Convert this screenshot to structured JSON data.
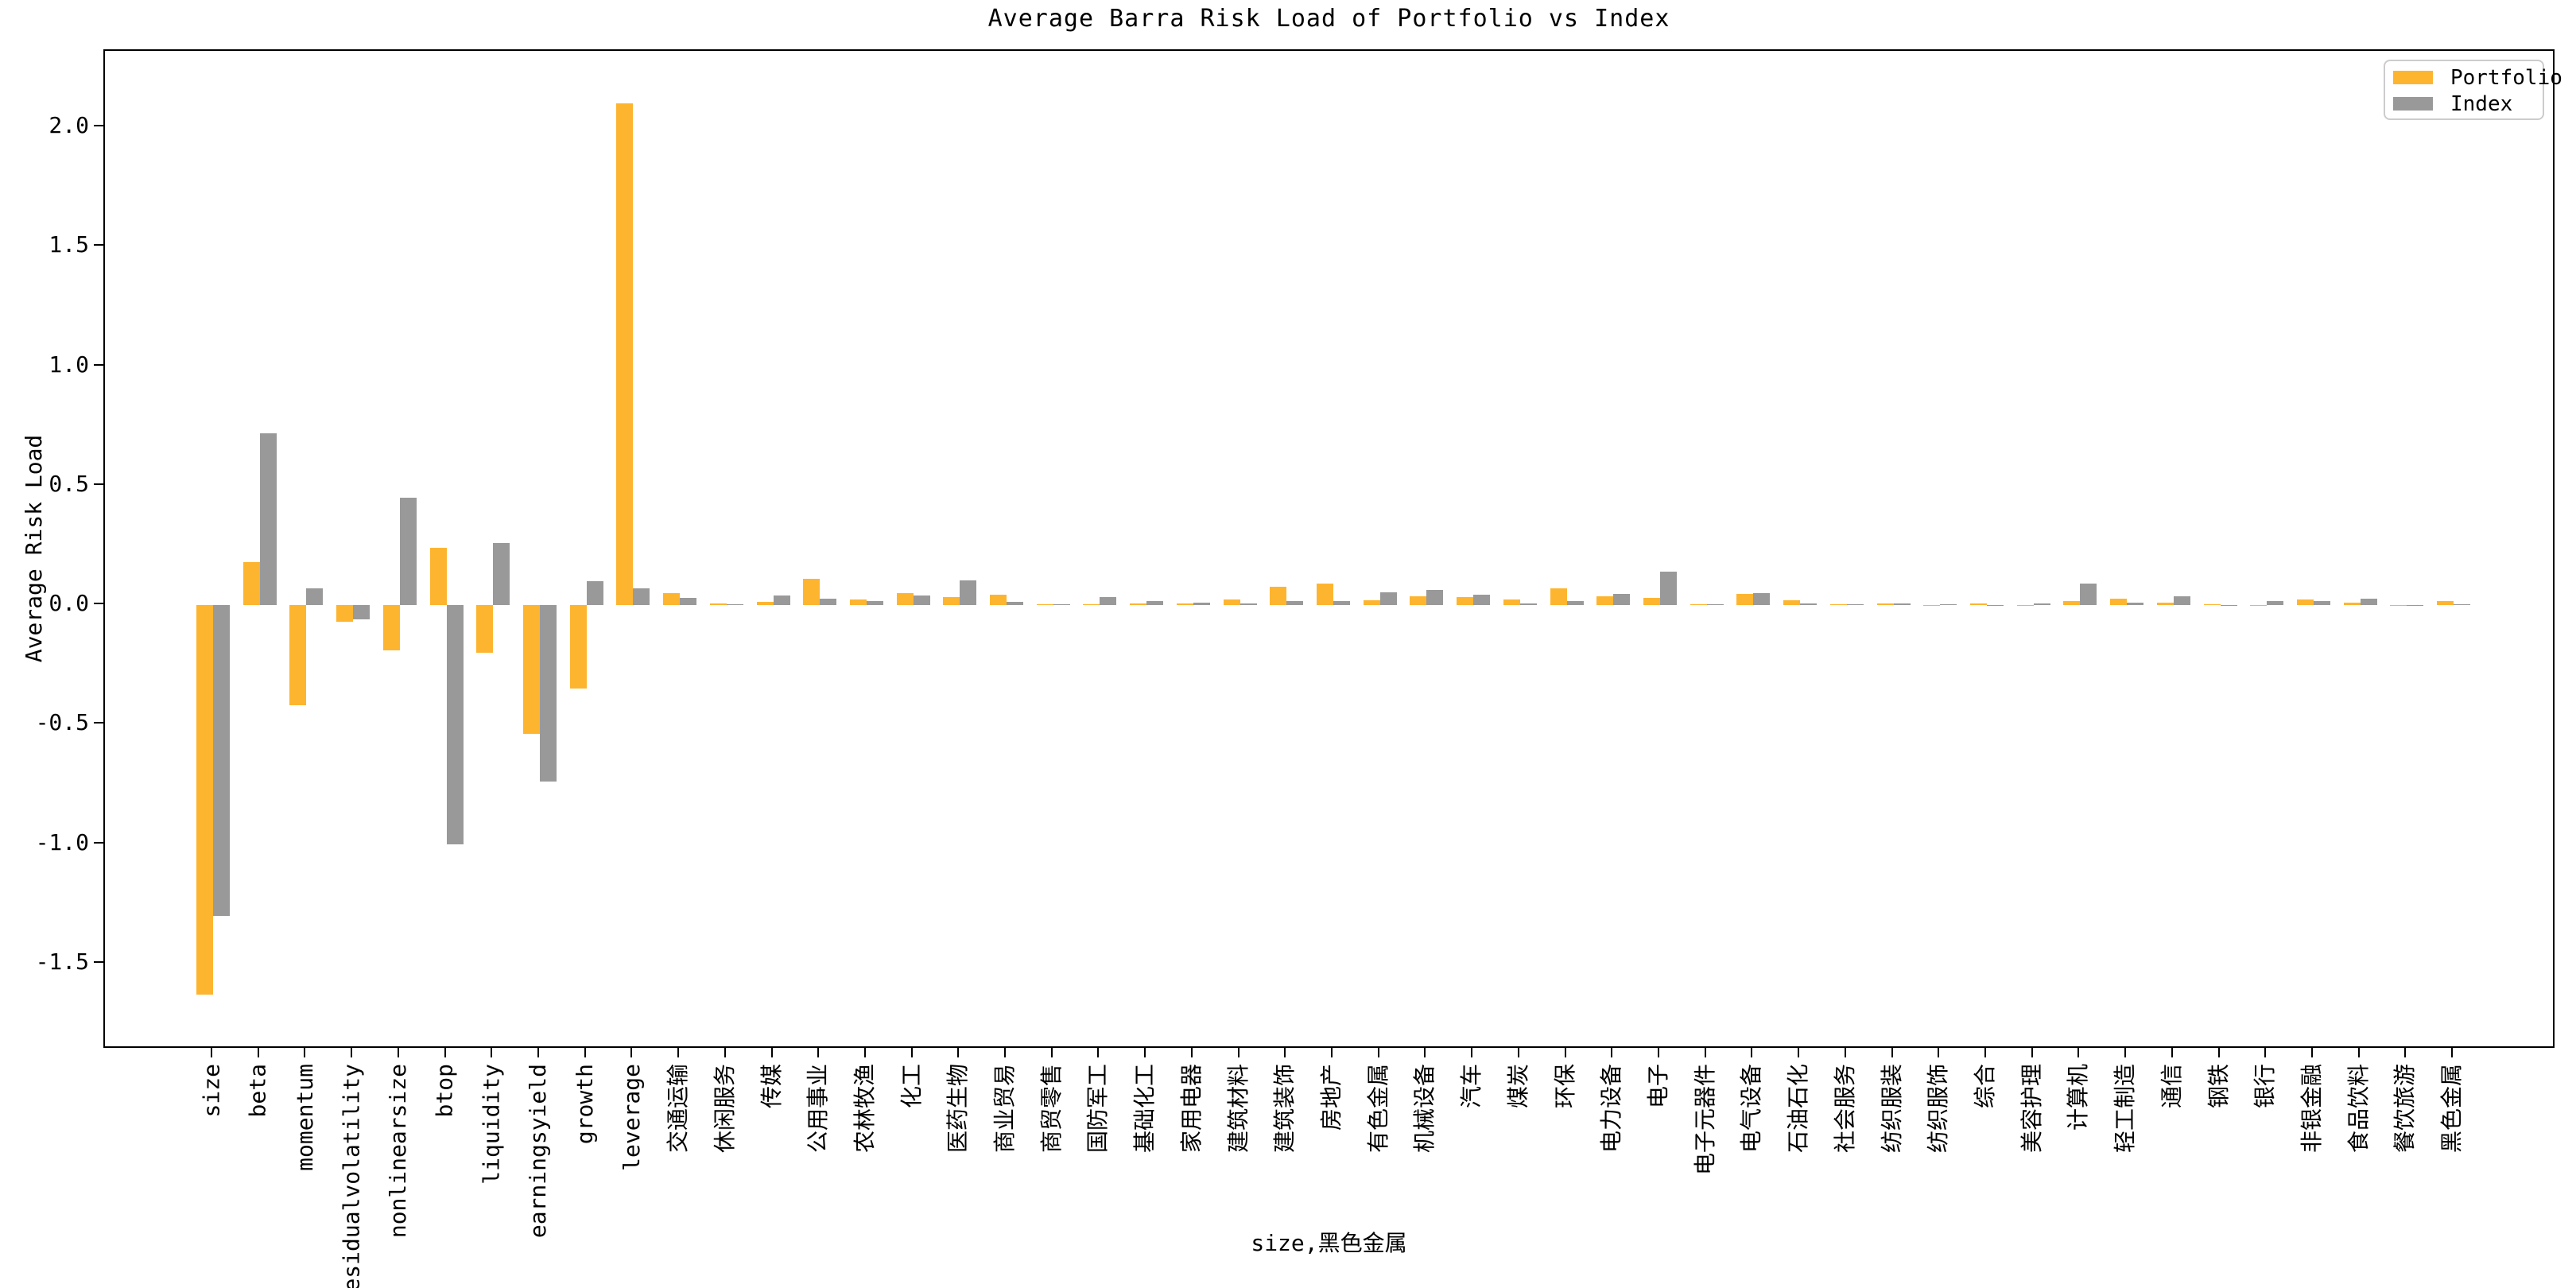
{
  "chart_data": {
    "type": "bar",
    "title": "Average Barra Risk Load of Portfolio vs Index",
    "xlabel": "size,黑色金属",
    "ylabel": "Average Risk Load",
    "grid": false,
    "legend_position": "upper right",
    "background": "#FFFFFF",
    "spine_color": "#000000",
    "ylim": [
      -1.86,
      2.32
    ],
    "yticks": [
      2.0,
      1.5,
      1.0,
      0.5,
      0.0,
      -0.5,
      -1.0,
      -1.5
    ],
    "ytick_labels": [
      "2.0",
      "1.5",
      "1.0",
      "0.5",
      "0.0",
      "-0.5",
      "-1.0",
      "-1.5"
    ],
    "categories": [
      "size",
      "beta",
      "momentum",
      "residualvolatility",
      "nonlinearsize",
      "btop",
      "liquidity",
      "earningsyield",
      "growth",
      "leverage",
      "交通运输",
      "休闲服务",
      "传媒",
      "公用事业",
      "农林牧渔",
      "化工",
      "医药生物",
      "商业贸易",
      "商贸零售",
      "国防军工",
      "基础化工",
      "家用电器",
      "建筑材料",
      "建筑装饰",
      "房地产",
      "有色金属",
      "机械设备",
      "汽车",
      "煤炭",
      "环保",
      "电力设备",
      "电子",
      "电子元器件",
      "电气设备",
      "石油石化",
      "社会服务",
      "纺织服装",
      "纺织服饰",
      "综合",
      "美容护理",
      "计算机",
      "轻工制造",
      "通信",
      "钢铁",
      "银行",
      "非银金融",
      "食品饮料",
      "餐饮旅游",
      "黑色金属"
    ],
    "series": [
      {
        "name": "Portfolio",
        "color": "#FDB530",
        "values": [
          -1.63,
          0.18,
          -0.42,
          -0.07,
          -0.19,
          0.24,
          -0.2,
          -0.54,
          -0.35,
          2.1,
          0.05,
          0.008,
          0.015,
          0.11,
          0.022,
          0.05,
          0.033,
          0.044,
          0.004,
          0.005,
          0.007,
          0.006,
          0.024,
          0.078,
          0.09,
          0.019,
          0.036,
          0.033,
          0.022,
          0.069,
          0.038,
          0.031,
          0.004,
          0.047,
          0.02,
          0.004,
          0.007,
          0.002,
          0.006,
          0.001,
          0.017,
          0.027,
          0.012,
          0.004,
          0.001,
          0.022,
          0.011,
          0.001,
          0.016
        ]
      },
      {
        "name": "Index",
        "color": "#999999",
        "values": [
          -1.3,
          0.72,
          0.07,
          -0.06,
          0.45,
          -1.0,
          0.26,
          -0.74,
          0.1,
          0.07,
          0.03,
          0.003,
          0.04,
          0.026,
          0.018,
          0.04,
          0.103,
          0.013,
          0.003,
          0.033,
          0.016,
          0.009,
          0.006,
          0.017,
          0.017,
          0.053,
          0.064,
          0.042,
          0.008,
          0.017,
          0.047,
          0.139,
          0.005,
          0.05,
          0.008,
          0.004,
          0.006,
          0.004,
          0.001,
          0.007,
          0.089,
          0.009,
          0.036,
          0.002,
          0.016,
          0.016,
          0.027,
          0.001,
          0.003
        ]
      }
    ]
  }
}
